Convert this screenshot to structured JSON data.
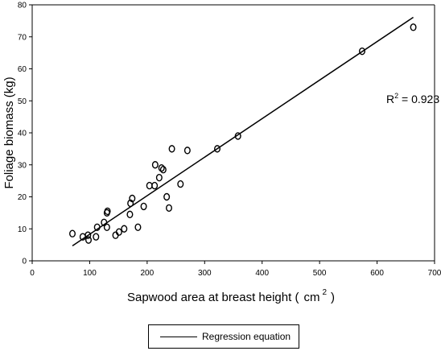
{
  "chart_data": {
    "type": "scatter",
    "ylabel": "Foliage biomass (kg)",
    "xlabel_main": "Sapwood area at breast height (",
    "xlabel_unit": "cm",
    "xlabel_sup": "2",
    "xlabel_close": ")",
    "xlim": [
      0,
      700
    ],
    "ylim": [
      0,
      80
    ],
    "x_ticks": [
      0,
      100,
      200,
      300,
      400,
      500,
      600,
      700
    ],
    "y_ticks": [
      0,
      10,
      20,
      30,
      40,
      50,
      60,
      70,
      80
    ],
    "annotation": {
      "prefix": "R",
      "sup": "2",
      "value": " = 0.923"
    },
    "points": [
      {
        "x": 70,
        "y": 8.5
      },
      {
        "x": 88,
        "y": 7.5
      },
      {
        "x": 97,
        "y": 8.0
      },
      {
        "x": 98,
        "y": 6.5
      },
      {
        "x": 111,
        "y": 7.5
      },
      {
        "x": 113,
        "y": 10.5
      },
      {
        "x": 125,
        "y": 12.0
      },
      {
        "x": 130,
        "y": 10.5
      },
      {
        "x": 130,
        "y": 15.0
      },
      {
        "x": 131,
        "y": 15.5
      },
      {
        "x": 145,
        "y": 8.0
      },
      {
        "x": 151,
        "y": 9.0
      },
      {
        "x": 160,
        "y": 10.0
      },
      {
        "x": 170,
        "y": 14.5
      },
      {
        "x": 171,
        "y": 18.0
      },
      {
        "x": 174,
        "y": 19.5
      },
      {
        "x": 184,
        "y": 10.5
      },
      {
        "x": 194,
        "y": 17.0
      },
      {
        "x": 204,
        "y": 23.5
      },
      {
        "x": 213,
        "y": 23.5
      },
      {
        "x": 214,
        "y": 30.0
      },
      {
        "x": 221,
        "y": 26.0
      },
      {
        "x": 225,
        "y": 29.0
      },
      {
        "x": 228,
        "y": 28.5
      },
      {
        "x": 234,
        "y": 20.0
      },
      {
        "x": 238,
        "y": 16.5
      },
      {
        "x": 243,
        "y": 35.0
      },
      {
        "x": 258,
        "y": 24.0
      },
      {
        "x": 270,
        "y": 34.5
      },
      {
        "x": 322,
        "y": 35.0
      },
      {
        "x": 358,
        "y": 39.0
      },
      {
        "x": 574,
        "y": 65.5
      },
      {
        "x": 663,
        "y": 73.0
      }
    ],
    "series": [
      {
        "name": "Regression equation",
        "type": "line",
        "x": [
          70,
          663
        ],
        "y": [
          4.7,
          76.1
        ]
      }
    ],
    "legend": {
      "label": "Regression equation",
      "position": "bottom"
    },
    "grid": false
  }
}
